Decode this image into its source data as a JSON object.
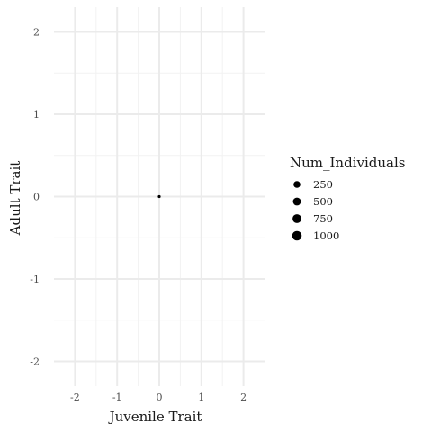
{
  "chart_data": {
    "type": "scatter",
    "xlabel": "Juvenile Trait",
    "ylabel": "Adult Trait",
    "xlim": [
      -2.5,
      2.5
    ],
    "ylim": [
      -2.3,
      2.3
    ],
    "x_ticks": [
      -2,
      -1,
      0,
      1,
      2
    ],
    "y_ticks": [
      -2,
      -1,
      0,
      1,
      2
    ],
    "x_tick_labels": [
      "-2",
      "-1",
      "0",
      "1",
      "2"
    ],
    "y_tick_labels": [
      "-2",
      "-1",
      "0",
      "1",
      "2"
    ],
    "grid": true,
    "points": [
      {
        "x": 0,
        "y": 0,
        "size": 1
      }
    ],
    "legend": {
      "title": "Num_Individuals",
      "placement": "right",
      "entries": [
        {
          "label": "250",
          "value": 250
        },
        {
          "label": "500",
          "value": 500
        },
        {
          "label": "750",
          "value": 750
        },
        {
          "label": "1000",
          "value": 1000
        }
      ]
    },
    "colors": {
      "background": "#ffffff",
      "grid_major": "#ebebeb",
      "grid_minor": "#f2f2f2",
      "point": "#000000"
    }
  }
}
